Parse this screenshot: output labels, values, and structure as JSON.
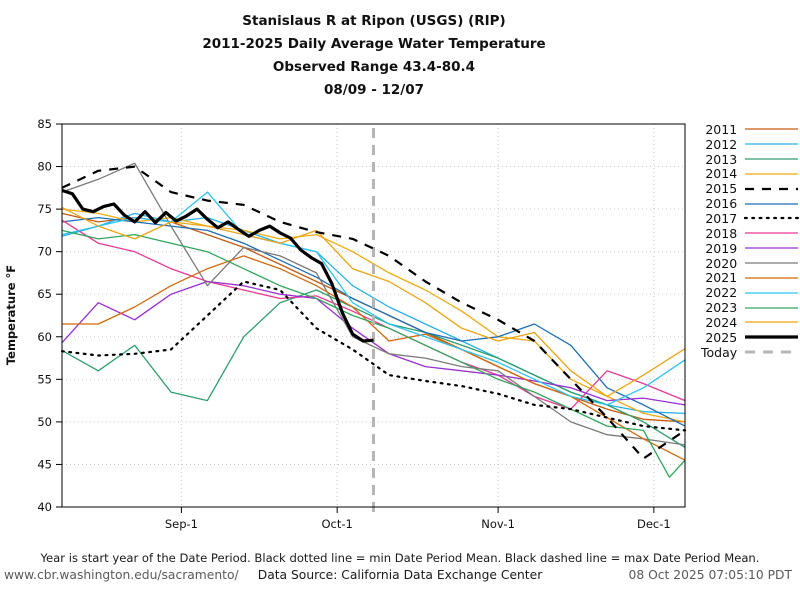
{
  "title": {
    "lines": [
      "Stanislaus R at Ripon (USGS) (RIP)",
      "2011-2025 Daily Average Water Temperature",
      "Observed Range 43.4-80.4",
      "08/09 - 12/07"
    ]
  },
  "axes": {
    "y_label": "Temperature °F",
    "y_min": 40,
    "y_max": 85,
    "y_ticks": [
      40,
      45,
      50,
      55,
      60,
      65,
      70,
      75,
      80,
      85
    ],
    "x_ticks": [
      {
        "label": "Sep-1",
        "day": 23
      },
      {
        "label": "Oct-1",
        "day": 53
      },
      {
        "label": "Nov-1",
        "day": 84
      },
      {
        "label": "Dec-1",
        "day": 114
      }
    ],
    "x_total_days": 120,
    "grid_color": "#c9c9c9"
  },
  "chart_data": {
    "type": "line",
    "x_unit": "days since Aug 9",
    "date_range": "08/09 - 12/07",
    "shared_days": [
      0,
      7,
      14,
      21,
      28,
      35,
      42,
      49,
      56,
      63,
      70,
      77,
      84,
      91,
      98,
      105,
      112,
      120
    ],
    "series": [
      {
        "name": "2011",
        "color": "#c55a11",
        "style": "solid",
        "values": [
          74.5,
          73.5,
          74.0,
          73.5,
          72.0,
          70.5,
          68.5,
          66.5,
          64.5,
          62.5,
          60.5,
          58.5,
          56.5,
          54.5,
          53.0,
          51.5,
          50.3,
          50.0
        ]
      },
      {
        "name": "2012",
        "color": "#2ab0e8",
        "style": "solid",
        "values": [
          71.8,
          73.0,
          74.5,
          73.5,
          74.0,
          72.5,
          71.0,
          70.0,
          66.0,
          63.5,
          61.5,
          59.5,
          57.5,
          55.5,
          53.5,
          52.0,
          51.2,
          51.0
        ]
      },
      {
        "name": "2013",
        "color": "#2e9e6e",
        "style": "solid",
        "values": [
          58.4,
          56.0,
          59.0,
          53.5,
          52.5,
          60.0,
          64.0,
          65.5,
          63.5,
          61.5,
          60.5,
          59.0,
          57.5,
          55.5,
          53.5,
          52.0,
          50.0,
          47.0
        ]
      },
      {
        "name": "2014",
        "color": "#efab14",
        "style": "solid",
        "values": [
          75.0,
          74.5,
          73.5,
          74.0,
          73.0,
          72.5,
          71.5,
          72.0,
          70.0,
          67.5,
          65.5,
          63.0,
          60.0,
          59.5,
          55.0,
          53.0,
          51.0,
          50.0
        ]
      },
      {
        "name": "2015",
        "color": "#000000",
        "style": "dashed",
        "values": [
          77.5,
          79.5,
          80.0,
          77.0,
          76.0,
          75.5,
          73.5,
          72.3,
          71.5,
          69.5,
          66.5,
          64.0,
          62.0,
          59.5,
          55.0,
          50.5,
          45.7,
          49.0
        ]
      },
      {
        "name": "2016",
        "color": "#1f6eb4",
        "style": "solid",
        "values": [
          73.5,
          74.0,
          73.5,
          73.0,
          72.5,
          71.0,
          69.0,
          67.0,
          64.5,
          62.5,
          60.5,
          59.5,
          60.0,
          61.5,
          59.0,
          54.0,
          52.0,
          49.5
        ]
      },
      {
        "name": "2017",
        "color": "#000000",
        "style": "dotted",
        "values": [
          58.3,
          57.8,
          58.0,
          58.5,
          62.5,
          66.5,
          65.5,
          61.0,
          58.5,
          55.5,
          54.8,
          54.2,
          53.3,
          52.0,
          51.5,
          50.5,
          49.5,
          49.0
        ]
      },
      {
        "name": "2018",
        "color": "#e73895",
        "style": "solid",
        "values": [
          73.7,
          71.0,
          70.0,
          68.0,
          66.5,
          65.5,
          64.5,
          64.8,
          63.0,
          61.0,
          59.0,
          57.0,
          55.5,
          53.0,
          51.5,
          56.0,
          54.5,
          52.5
        ]
      },
      {
        "name": "2019",
        "color": "#9a30d0",
        "style": "solid",
        "values": [
          59.3,
          64.0,
          62.0,
          65.0,
          66.5,
          66.0,
          65.0,
          64.5,
          61.0,
          58.0,
          56.5,
          56.0,
          55.5,
          54.8,
          54.0,
          52.5,
          52.8,
          52.0
        ]
      },
      {
        "name": "2020",
        "color": "#7a7a7a",
        "style": "solid",
        "values": [
          77.0,
          78.5,
          80.4,
          73.0,
          66.0,
          70.5,
          69.5,
          67.5,
          60.0,
          58.0,
          57.5,
          56.5,
          56.0,
          53.0,
          50.0,
          48.5,
          48.0,
          47.3
        ]
      },
      {
        "name": "2021",
        "color": "#d2690f",
        "style": "solid",
        "values": [
          61.5,
          61.5,
          63.5,
          66.0,
          68.0,
          69.5,
          68.0,
          66.0,
          63.5,
          59.5,
          60.3,
          58.5,
          56.5,
          54.5,
          53.0,
          50.5,
          48.0,
          45.5
        ]
      },
      {
        "name": "2022",
        "color": "#2cc3f2",
        "style": "solid",
        "values": [
          72.0,
          73.0,
          74.0,
          73.5,
          77.0,
          72.0,
          71.0,
          70.0,
          64.0,
          61.5,
          60.0,
          58.5,
          57.0,
          55.0,
          53.0,
          52.0,
          54.0,
          57.3
        ]
      },
      {
        "name": "2023",
        "color": "#31a65c",
        "style": "solid",
        "days": [
          0,
          7,
          14,
          21,
          28,
          35,
          42,
          49,
          56,
          63,
          70,
          77,
          84,
          91,
          98,
          105,
          112,
          117,
          120
        ],
        "values": [
          72.5,
          71.5,
          72.0,
          71.0,
          70.0,
          68.0,
          66.0,
          64.5,
          62.5,
          61.0,
          59.0,
          57.0,
          55.0,
          53.5,
          51.5,
          49.5,
          49.0,
          43.5,
          45.5
        ]
      },
      {
        "name": "2024",
        "color": "#eca413",
        "style": "solid",
        "values": [
          75.2,
          73.0,
          71.5,
          73.5,
          73.0,
          72.0,
          71.0,
          72.5,
          68.0,
          66.5,
          64.0,
          61.0,
          59.5,
          60.5,
          56.0,
          53.0,
          55.5,
          58.6
        ]
      },
      {
        "name": "2025",
        "color": "#000000",
        "style": "thick",
        "days": [
          0,
          2,
          4,
          6,
          8,
          10,
          12,
          14,
          16,
          18,
          20,
          22,
          24,
          26,
          28,
          30,
          32,
          34,
          36,
          38,
          40,
          42,
          44,
          46,
          48,
          50,
          52,
          54,
          56,
          58,
          60
        ],
        "values": [
          77.2,
          76.8,
          75.0,
          74.7,
          75.3,
          75.6,
          74.3,
          73.5,
          74.7,
          73.4,
          74.6,
          73.6,
          74.2,
          75.0,
          73.8,
          72.8,
          73.5,
          72.6,
          71.8,
          72.5,
          73.0,
          72.2,
          71.6,
          70.2,
          69.3,
          68.6,
          66.2,
          62.8,
          60.3,
          59.5,
          59.6
        ]
      }
    ],
    "today": {
      "label": "Today",
      "day": 60,
      "color": "#b5b5b5"
    },
    "ylim": [
      40,
      85
    ],
    "legend_position": "right",
    "grid": true
  },
  "footer": {
    "note": "Year is start year of the Date Period. Black dotted line = min Date Period Mean. Black dashed line = max Date Period Mean.",
    "url": "www.cbr.washington.edu/sacramento/",
    "source": "Data Source: California Data Exchange Center",
    "timestamp": "08 Oct 2025 07:05:10 PDT"
  }
}
